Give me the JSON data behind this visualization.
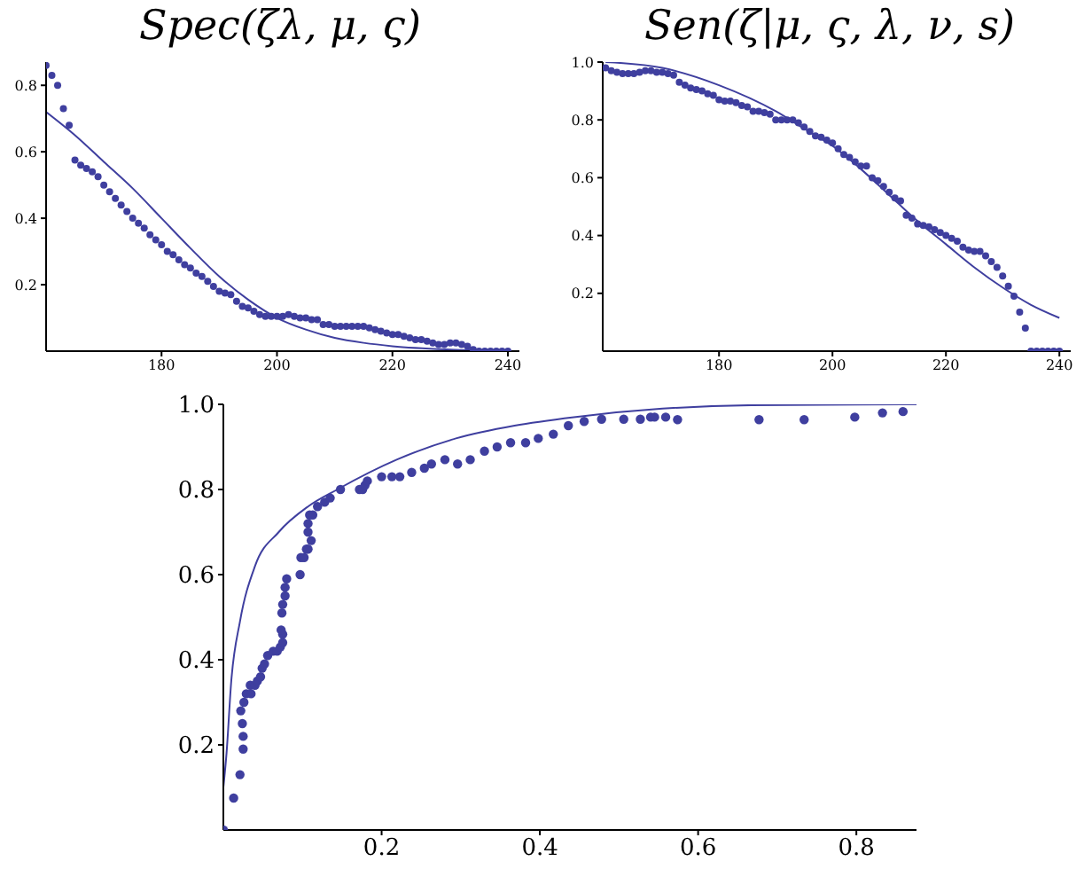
{
  "chart_data": [
    {
      "type": "scatter",
      "title": "Spec(ζλ, μ, ς)",
      "xlim": [
        160,
        242
      ],
      "xticks": [
        180,
        200,
        220,
        240
      ],
      "ylim": [
        0,
        0.87
      ],
      "yticks": [
        0.2,
        0.4,
        0.6,
        0.8
      ],
      "series": [
        {
          "marker": "circle",
          "color": "#3f3f9f",
          "x": [
            160,
            161,
            162,
            163,
            164,
            165,
            166,
            167,
            168,
            169,
            170,
            171,
            172,
            173,
            174,
            175,
            176,
            177,
            178,
            179,
            180,
            181,
            182,
            183,
            184,
            185,
            186,
            187,
            188,
            189,
            190,
            191,
            192,
            193,
            194,
            195,
            196,
            197,
            198,
            199,
            200,
            201,
            202,
            203,
            204,
            205,
            206,
            207,
            208,
            209,
            210,
            211,
            212,
            213,
            214,
            215,
            216,
            217,
            218,
            219,
            220,
            221,
            222,
            223,
            224,
            225,
            226,
            227,
            228,
            229,
            230,
            231,
            232,
            233,
            234,
            235,
            236,
            237,
            238,
            239,
            240
          ],
          "values": [
            0.86,
            0.83,
            0.8,
            0.73,
            0.68,
            0.575,
            0.56,
            0.55,
            0.54,
            0.525,
            0.5,
            0.48,
            0.46,
            0.44,
            0.42,
            0.4,
            0.385,
            0.37,
            0.35,
            0.335,
            0.32,
            0.3,
            0.29,
            0.275,
            0.26,
            0.25,
            0.235,
            0.225,
            0.21,
            0.195,
            0.18,
            0.175,
            0.17,
            0.15,
            0.135,
            0.13,
            0.12,
            0.11,
            0.105,
            0.105,
            0.105,
            0.105,
            0.11,
            0.105,
            0.1,
            0.1,
            0.095,
            0.095,
            0.08,
            0.08,
            0.075,
            0.075,
            0.075,
            0.075,
            0.075,
            0.075,
            0.07,
            0.065,
            0.06,
            0.055,
            0.05,
            0.05,
            0.045,
            0.04,
            0.035,
            0.035,
            0.03,
            0.025,
            0.02,
            0.02,
            0.025,
            0.025,
            0.02,
            0.015,
            0.005,
            0,
            0,
            0,
            0,
            0,
            0
          ]
        },
        {
          "type": "line",
          "color": "#3f3f9f",
          "x": [
            160,
            165,
            170,
            175,
            180,
            185,
            190,
            195,
            200,
            205,
            210,
            215,
            220,
            230,
            240
          ],
          "values": [
            0.72,
            0.65,
            0.57,
            0.49,
            0.4,
            0.31,
            0.225,
            0.155,
            0.1,
            0.065,
            0.04,
            0.025,
            0.015,
            0.005,
            0.001
          ]
        }
      ]
    },
    {
      "type": "scatter",
      "title": "Sen(ζ|μ, ς, λ, ν, s)",
      "xlim": [
        159.5,
        242
      ],
      "xticks": [
        180,
        200,
        220,
        240
      ],
      "ylim": [
        0,
        1.0
      ],
      "yticks": [
        0.2,
        0.4,
        0.6,
        0.8,
        {
          "value": 1,
          "label": "1.0"
        }
      ],
      "series": [
        {
          "marker": "circle",
          "color": "#3f3f9f",
          "x": [
            160,
            161,
            162,
            163,
            164,
            165,
            166,
            167,
            168,
            169,
            170,
            171,
            172,
            173,
            174,
            175,
            176,
            177,
            178,
            179,
            180,
            181,
            182,
            183,
            184,
            185,
            186,
            187,
            188,
            189,
            190,
            191,
            192,
            193,
            194,
            195,
            196,
            197,
            198,
            199,
            200,
            201,
            202,
            203,
            204,
            205,
            206,
            207,
            208,
            209,
            210,
            211,
            212,
            213,
            214,
            215,
            216,
            217,
            218,
            219,
            220,
            221,
            222,
            223,
            224,
            225,
            226,
            227,
            228,
            229,
            230,
            231,
            232,
            233,
            234,
            235,
            236,
            237,
            238,
            239,
            240
          ],
          "values": [
            0.98,
            0.97,
            0.965,
            0.96,
            0.96,
            0.96,
            0.965,
            0.97,
            0.97,
            0.965,
            0.965,
            0.96,
            0.955,
            0.93,
            0.92,
            0.91,
            0.905,
            0.9,
            0.89,
            0.885,
            0.87,
            0.865,
            0.865,
            0.86,
            0.85,
            0.845,
            0.83,
            0.83,
            0.825,
            0.82,
            0.8,
            0.8,
            0.8,
            0.8,
            0.79,
            0.775,
            0.76,
            0.745,
            0.74,
            0.73,
            0.72,
            0.7,
            0.68,
            0.67,
            0.655,
            0.64,
            0.64,
            0.6,
            0.59,
            0.57,
            0.55,
            0.53,
            0.52,
            0.47,
            0.46,
            0.44,
            0.435,
            0.43,
            0.42,
            0.41,
            0.4,
            0.39,
            0.38,
            0.36,
            0.35,
            0.345,
            0.345,
            0.33,
            0.31,
            0.29,
            0.26,
            0.225,
            0.19,
            0.135,
            0.08,
            0,
            0,
            0,
            0,
            0,
            0
          ]
        },
        {
          "type": "line",
          "color": "#3f3f9f",
          "x": [
            160,
            170,
            180,
            190,
            195,
            200,
            205,
            210,
            215,
            220,
            225,
            230,
            235,
            240
          ],
          "values": [
            1.0,
            0.98,
            0.92,
            0.83,
            0.77,
            0.71,
            0.63,
            0.54,
            0.45,
            0.37,
            0.29,
            0.22,
            0.16,
            0.115
          ]
        }
      ]
    },
    {
      "type": "scatter",
      "xlim": [
        0,
        0.876
      ],
      "xticks": [
        0.2,
        0.4,
        0.6,
        0.8
      ],
      "ylim": [
        0,
        1.0
      ],
      "yticks": [
        0.2,
        0.4,
        0.6,
        0.8,
        {
          "value": 1,
          "label": "1.0"
        }
      ],
      "series": [
        {
          "marker": "circle",
          "color": "#3f3f9f",
          "x": [
            0,
            0.013,
            0.021,
            0.025,
            0.025,
            0.024,
            0.022,
            0.026,
            0.029,
            0.035,
            0.034,
            0.04,
            0.043,
            0.047,
            0.049,
            0.052,
            0.056,
            0.063,
            0.068,
            0.072,
            0.075,
            0.075,
            0.073,
            0.074,
            0.075,
            0.078,
            0.078,
            0.08,
            0.097,
            0.098,
            0.102,
            0.105,
            0.107,
            0.111,
            0.107,
            0.107,
            0.109,
            0.113,
            0.119,
            0.128,
            0.135,
            0.148,
            0.172,
            0.176,
            0.179,
            0.182,
            0.2,
            0.213,
            0.223,
            0.238,
            0.254,
            0.263,
            0.28,
            0.296,
            0.312,
            0.33,
            0.346,
            0.363,
            0.382,
            0.398,
            0.417,
            0.436,
            0.456,
            0.478,
            0.506,
            0.527,
            0.54,
            0.545,
            0.559,
            0.574,
            0.677,
            0.734,
            0.798,
            0.833,
            0.859
          ],
          "values": [
            0,
            0.075,
            0.13,
            0.19,
            0.22,
            0.25,
            0.28,
            0.3,
            0.32,
            0.32,
            0.34,
            0.34,
            0.35,
            0.36,
            0.38,
            0.39,
            0.41,
            0.42,
            0.42,
            0.43,
            0.44,
            0.46,
            0.47,
            0.51,
            0.53,
            0.55,
            0.57,
            0.59,
            0.6,
            0.64,
            0.64,
            0.66,
            0.66,
            0.68,
            0.7,
            0.72,
            0.74,
            0.74,
            0.76,
            0.77,
            0.78,
            0.8,
            0.8,
            0.8,
            0.81,
            0.82,
            0.83,
            0.83,
            0.83,
            0.84,
            0.85,
            0.86,
            0.87,
            0.86,
            0.87,
            0.89,
            0.9,
            0.91,
            0.91,
            0.92,
            0.93,
            0.95,
            0.96,
            0.965,
            0.965,
            0.965,
            0.97,
            0.97,
            0.97,
            0.964,
            0.964,
            0.964,
            0.97,
            0.98,
            0.983
          ]
        },
        {
          "type": "line",
          "color": "#3f3f9f",
          "x": [
            0,
            0.004,
            0.01,
            0.021,
            0.04,
            0.07,
            0.107,
            0.144,
            0.219,
            0.294,
            0.368,
            0.443,
            0.555,
            0.667,
            0.876
          ],
          "values": [
            0.1,
            0.18,
            0.35,
            0.49,
            0.62,
            0.7,
            0.76,
            0.8,
            0.87,
            0.92,
            0.95,
            0.97,
            0.99,
            0.998,
            1.0
          ]
        }
      ]
    }
  ]
}
